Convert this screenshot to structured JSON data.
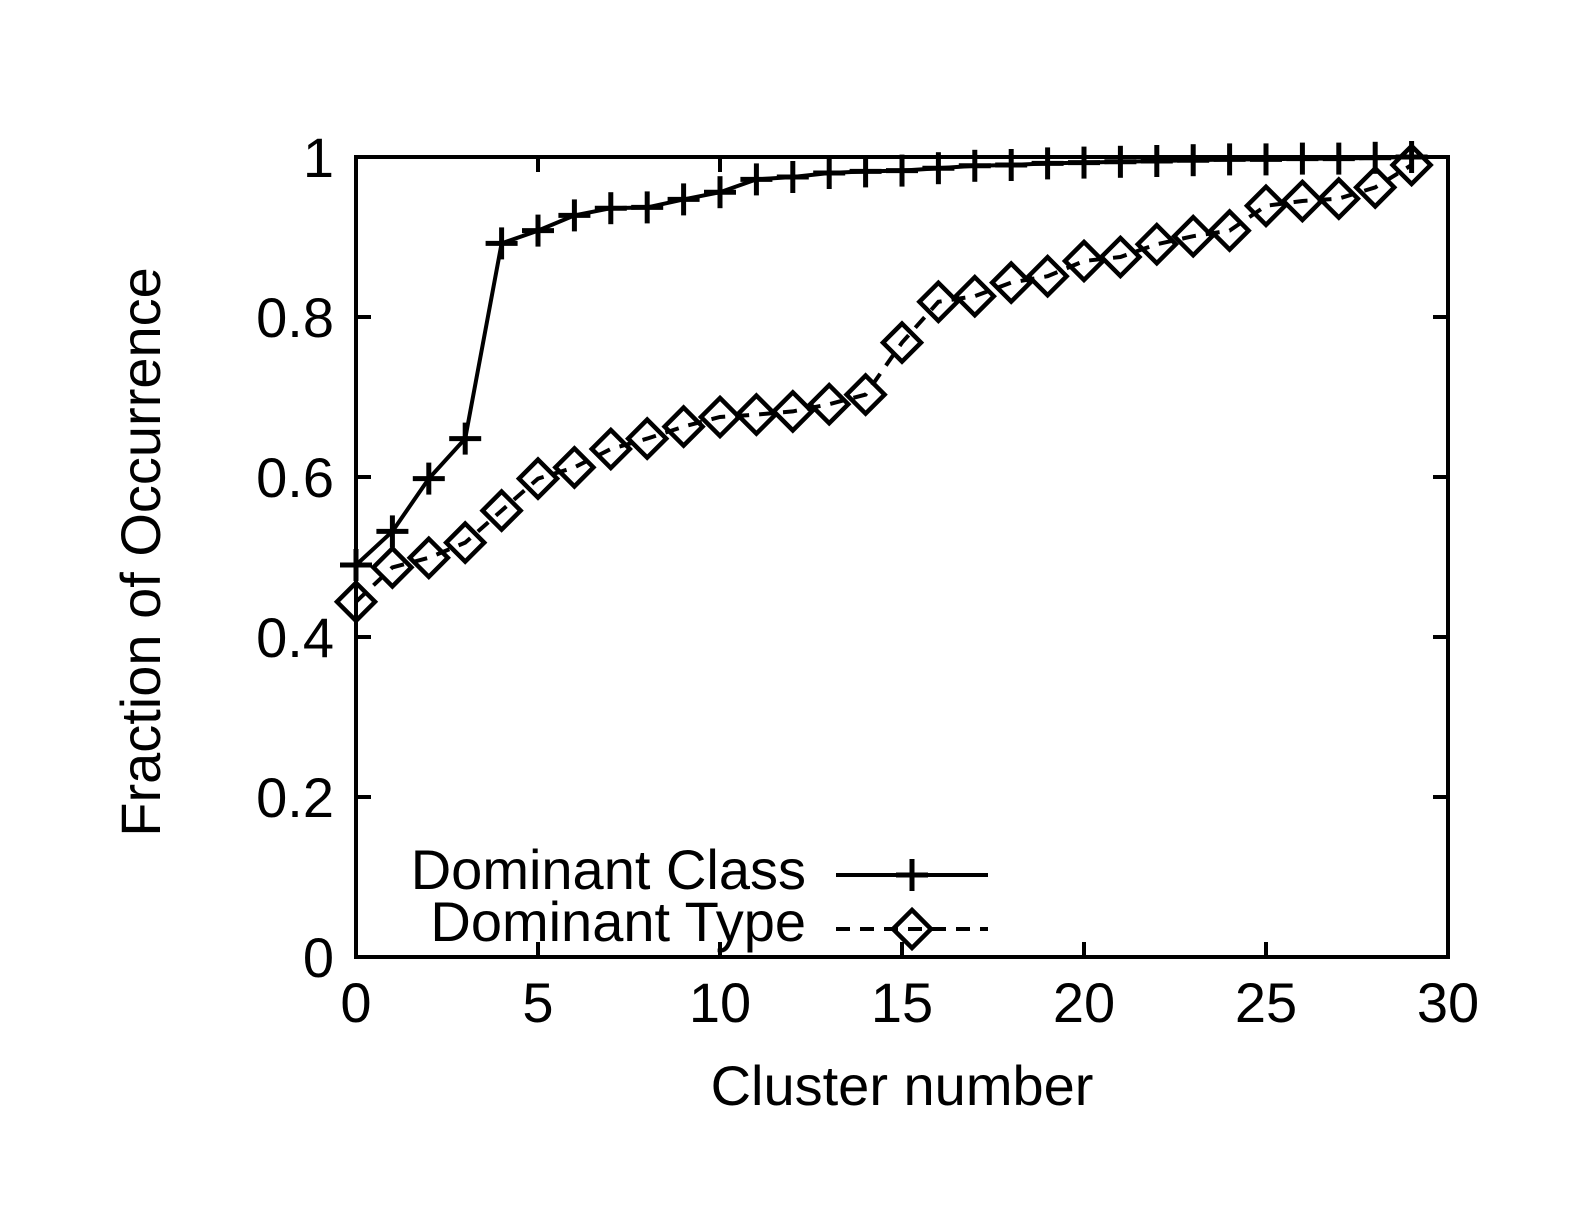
{
  "figure": {
    "background_color": "#ffffff",
    "ink_color": "#000000"
  },
  "chart_data": {
    "type": "line",
    "title": "",
    "xlabel": "Cluster number",
    "ylabel": "Fraction of Occurrence",
    "xlim": [
      0,
      30
    ],
    "ylim": [
      0,
      1
    ],
    "xticks": [
      0,
      5,
      10,
      15,
      20,
      25,
      30
    ],
    "xtick_labels": [
      "0",
      "5",
      "10",
      "15",
      "20",
      "25",
      "30"
    ],
    "yticks": [
      0,
      0.2,
      0.4,
      0.6,
      0.8,
      1
    ],
    "ytick_labels": [
      "0",
      "0.2",
      "0.4",
      "0.6",
      "0.8",
      "1"
    ],
    "grid": false,
    "legend": {
      "position": "inside-bottom-left",
      "entries": [
        "Dominant Class",
        "Dominant Type"
      ]
    },
    "x": [
      0,
      1,
      2,
      3,
      4,
      5,
      6,
      7,
      8,
      9,
      10,
      11,
      12,
      13,
      14,
      15,
      16,
      17,
      18,
      19,
      20,
      21,
      22,
      23,
      24,
      25,
      26,
      27,
      28,
      29
    ],
    "series": [
      {
        "name": "Dominant Class",
        "marker": "plus",
        "line_style": "solid",
        "values": [
          0.49,
          0.532,
          0.598,
          0.648,
          0.892,
          0.908,
          0.927,
          0.936,
          0.937,
          0.947,
          0.956,
          0.972,
          0.975,
          0.98,
          0.982,
          0.983,
          0.986,
          0.989,
          0.99,
          0.992,
          0.993,
          0.994,
          0.995,
          0.996,
          0.997,
          0.997,
          0.998,
          0.998,
          0.999,
          1.0
        ]
      },
      {
        "name": "Dominant Type",
        "marker": "diamond",
        "line_style": "dashed",
        "values": [
          0.444,
          0.487,
          0.499,
          0.518,
          0.558,
          0.598,
          0.612,
          0.635,
          0.648,
          0.663,
          0.675,
          0.678,
          0.682,
          0.691,
          0.703,
          0.768,
          0.819,
          0.826,
          0.843,
          0.851,
          0.87,
          0.875,
          0.891,
          0.901,
          0.908,
          0.939,
          0.945,
          0.948,
          0.962,
          0.99
        ]
      }
    ]
  }
}
